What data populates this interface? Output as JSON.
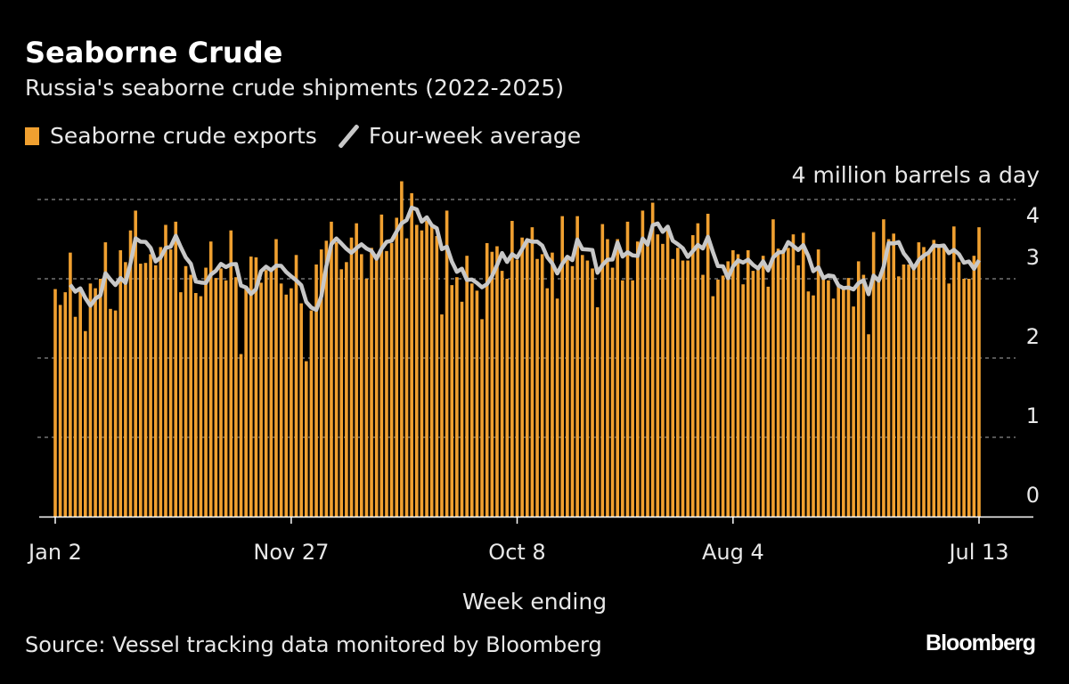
{
  "title": "Seaborne Crude",
  "subtitle": "Russia's seaborne crude shipments (2022-2025)",
  "source": "Source: Vessel tracking data monitored by Bloomberg",
  "logo": "Bloomberg",
  "colors": {
    "bars": "#f0a030",
    "line": "#c8c8c8",
    "background": "#000000",
    "grid": "#8a8a8a"
  },
  "chart_data": {
    "type": "bar",
    "title": "Seaborne Crude",
    "subtitle": "Russia's seaborne crude shipments (2022-2025)",
    "xlabel": "Week ending",
    "ylabel": "",
    "y_unit_label": "4 million barrels a day",
    "ylim": [
      0,
      4
    ],
    "y_ticks": [
      "0",
      "1",
      "2",
      "3",
      "4"
    ],
    "grid": true,
    "legend_placement": "top-left",
    "x_start": "2022-01-02",
    "frequency": "weekly",
    "x_ticks": [
      {
        "date": "2022-01-02",
        "label": "Jan 2"
      },
      {
        "date": "2022-11-27",
        "label": "Nov 27"
      },
      {
        "date": "2023-10-08",
        "label": "Oct 8"
      },
      {
        "date": "2024-08-04",
        "label": "Aug 4"
      },
      {
        "date": "2025-07-13",
        "label": "Jul 13"
      }
    ],
    "series": [
      {
        "name": "Seaborne crude exports",
        "type": "bar",
        "values": [
          2.87,
          2.67,
          2.83,
          3.33,
          2.52,
          2.84,
          2.34,
          2.94,
          2.88,
          3.0,
          3.46,
          2.62,
          2.6,
          3.36,
          3.21,
          3.61,
          3.86,
          3.19,
          3.2,
          3.31,
          3.17,
          3.4,
          3.68,
          3.37,
          3.72,
          2.83,
          3.16,
          3.05,
          2.82,
          2.78,
          3.14,
          3.47,
          3.01,
          3.13,
          2.98,
          3.61,
          3.02,
          2.05,
          2.88,
          3.28,
          3.27,
          2.95,
          3.11,
          3.1,
          3.5,
          2.94,
          2.8,
          2.88,
          3.3,
          2.69,
          1.96,
          2.6,
          3.18,
          3.37,
          3.48,
          3.72,
          3.46,
          3.12,
          3.21,
          3.52,
          3.7,
          3.31,
          3.0,
          3.39,
          3.31,
          3.81,
          3.35,
          3.45,
          3.77,
          4.23,
          3.51,
          4.08,
          3.68,
          3.61,
          3.73,
          3.67,
          3.54,
          2.55,
          3.86,
          2.92,
          3.02,
          2.71,
          3.29,
          2.94,
          2.85,
          2.49,
          3.45,
          3.34,
          3.41,
          3.1,
          3.0,
          3.73,
          3.24,
          3.52,
          3.46,
          3.65,
          3.25,
          3.31,
          2.88,
          3.33,
          2.75,
          3.79,
          3.24,
          3.16,
          3.79,
          3.3,
          3.23,
          3.13,
          2.64,
          3.69,
          3.5,
          3.14,
          3.5,
          2.98,
          3.72,
          2.98,
          3.47,
          3.86,
          3.41,
          3.96,
          3.56,
          3.44,
          3.67,
          3.25,
          3.39,
          3.23,
          3.23,
          3.55,
          3.7,
          3.05,
          3.82,
          2.78,
          2.99,
          3.04,
          3.22,
          3.36,
          3.31,
          2.93,
          3.36,
          3.1,
          3.13,
          3.29,
          2.9,
          3.75,
          3.38,
          3.33,
          3.39,
          3.56,
          3.17,
          3.58,
          2.84,
          2.79,
          3.37,
          3.03,
          2.98,
          2.75,
          2.9,
          2.9,
          3.01,
          2.65,
          3.22,
          3.05,
          2.3,
          3.59,
          2.96,
          3.75,
          3.5,
          3.57,
          3.03,
          3.18,
          3.18,
          3.13,
          3.46,
          3.4,
          3.33,
          3.49,
          3.43,
          3.43,
          2.94,
          3.66,
          3.21,
          3.0,
          3.0,
          3.29,
          3.65
        ]
      },
      {
        "name": "Four-week average",
        "type": "line",
        "window_weeks": 4
      }
    ]
  }
}
